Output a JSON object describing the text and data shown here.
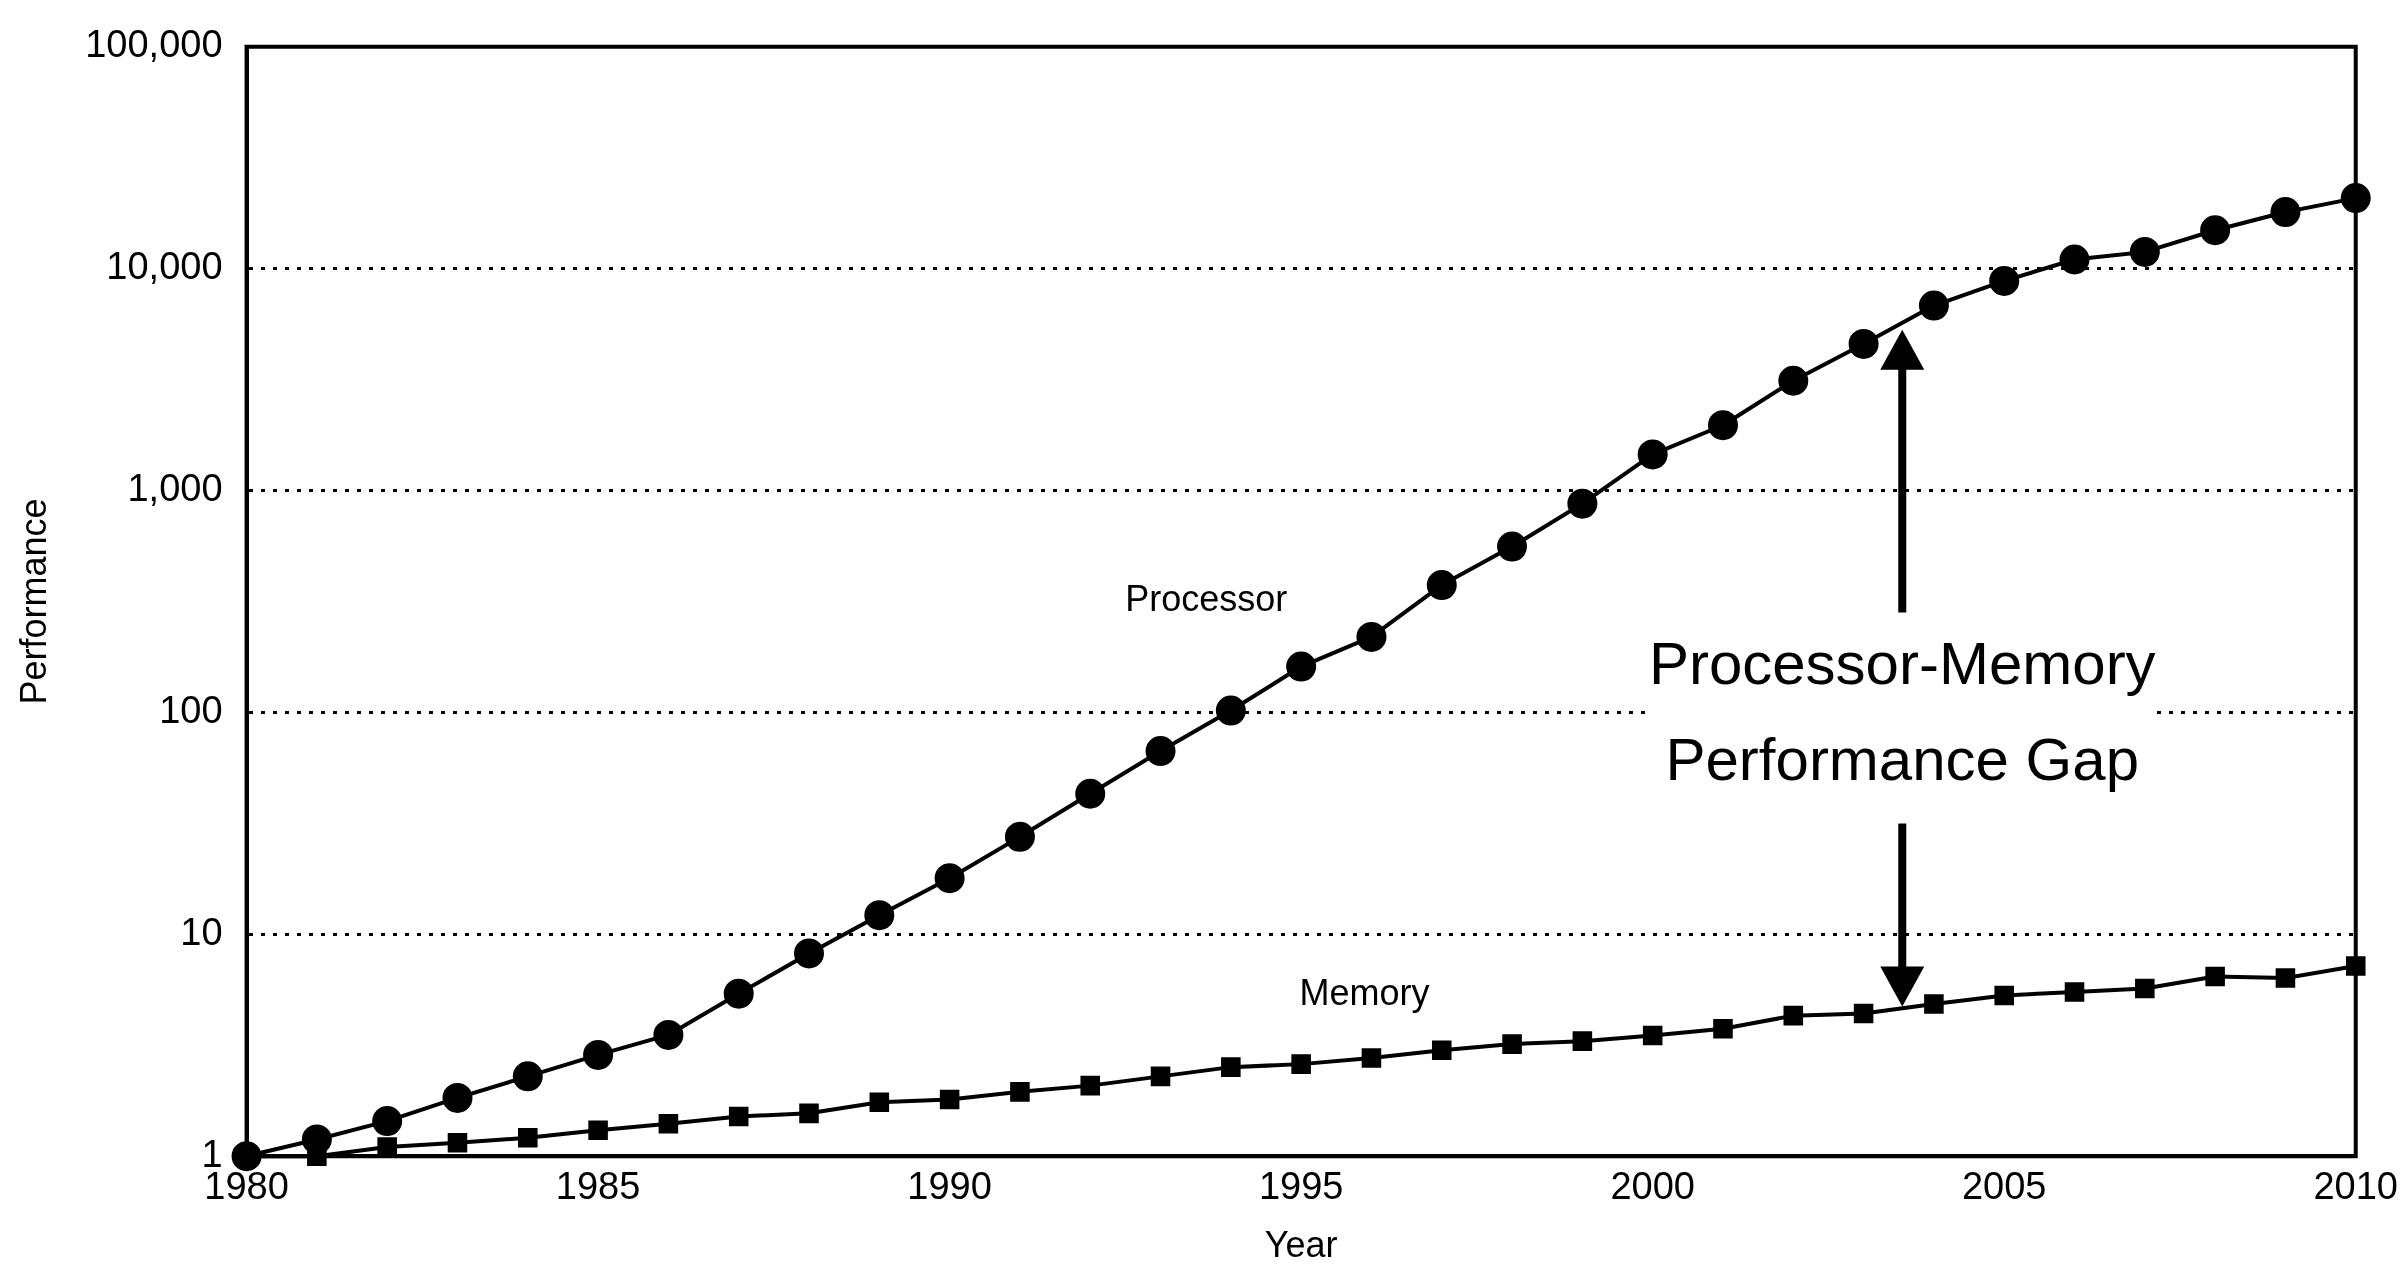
{
  "chart_data": {
    "type": "line",
    "xlabel": "Year",
    "ylabel": "Performance",
    "x": [
      1980,
      1981,
      1982,
      1983,
      1984,
      1985,
      1986,
      1987,
      1988,
      1989,
      1990,
      1991,
      1992,
      1993,
      1994,
      1995,
      1996,
      1997,
      1998,
      1999,
      2000,
      2001,
      2002,
      2003,
      2004,
      2005,
      2006,
      2007,
      2008,
      2009,
      2010
    ],
    "series": [
      {
        "name": "Processor",
        "color": "#000000",
        "marker": "circle",
        "values": [
          1,
          1.19,
          1.44,
          1.83,
          2.29,
          2.86,
          3.52,
          5.4,
          8.2,
          12.2,
          17.9,
          27.5,
          43,
          67,
          102,
          161,
          219,
          375,
          559,
          873,
          1455,
          1970,
          3125,
          4580,
          6820,
          8810,
          11000,
          11900,
          14900,
          18000,
          20800
        ]
      },
      {
        "name": "Memory",
        "color": "#000000",
        "marker": "square",
        "values": [
          1,
          1,
          1.1,
          1.15,
          1.21,
          1.31,
          1.4,
          1.51,
          1.56,
          1.75,
          1.8,
          1.95,
          2.08,
          2.29,
          2.52,
          2.6,
          2.77,
          3,
          3.2,
          3.3,
          3.5,
          3.75,
          4.3,
          4.4,
          4.85,
          5.3,
          5.5,
          5.7,
          6.45,
          6.35,
          7.2
        ]
      }
    ],
    "log": "y",
    "xlim": [
      1980,
      2010
    ],
    "xticks": [
      1980,
      1985,
      1990,
      1995,
      2000,
      2005,
      2010
    ],
    "ylim": [
      1,
      100000
    ],
    "yticks": [
      1,
      10,
      100,
      {
        "value": 1000,
        "label": "1,000"
      },
      {
        "value": 10000,
        "label": "10,000"
      },
      {
        "value": 100000,
        "label": "100,000"
      }
    ],
    "grid": "y",
    "legend": false,
    "line_style": "solid",
    "annotations": [
      "Processor-Memory Performance Gap"
    ]
  }
}
